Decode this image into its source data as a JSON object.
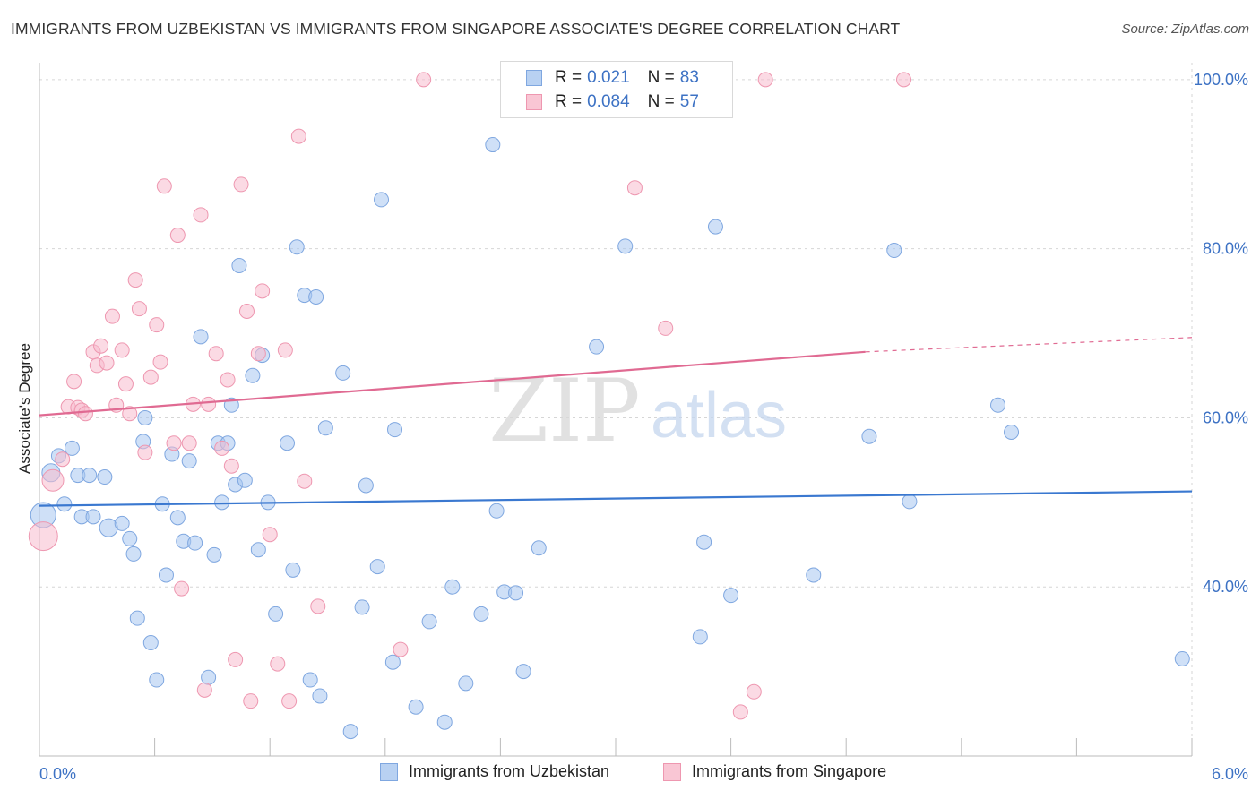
{
  "title": "IMMIGRANTS FROM UZBEKISTAN VS IMMIGRANTS FROM SINGAPORE ASSOCIATE'S DEGREE CORRELATION CHART",
  "source": "Source: ZipAtlas.com",
  "watermark": {
    "zip": "ZIP",
    "atlas": "atlas"
  },
  "legend": {
    "r_label": "R =",
    "n_label": "N =",
    "rows": [
      {
        "r": "0.021",
        "n": "83",
        "fill": "#b8d1f2",
        "stroke": "#7fa7e0"
      },
      {
        "r": "0.084",
        "n": "57",
        "fill": "#f9c6d4",
        "stroke": "#ee97b0"
      }
    ]
  },
  "bottom_legend": [
    "Immigrants from Uzbekistan",
    "Immigrants from Singapore"
  ],
  "chart_data": {
    "type": "scatter",
    "xlabel": "",
    "ylabel": "Associate's Degree",
    "xlim": [
      0.0,
      6.0
    ],
    "ylim": [
      20.0,
      102.0
    ],
    "x_tick_labels": [
      {
        "value": 0.0,
        "label": "0.0%"
      },
      {
        "value": 6.0,
        "label": "6.0%"
      }
    ],
    "y_tick_labels": [
      {
        "value": 40.0,
        "label": "40.0%"
      },
      {
        "value": 60.0,
        "label": "60.0%"
      },
      {
        "value": 80.0,
        "label": "80.0%"
      },
      {
        "value": 100.0,
        "label": "100.0%"
      }
    ],
    "grid": true,
    "colors": {
      "uzbekistan": "#3a78d0",
      "singapore": "#e06a92",
      "axis_text": "#3d72c4"
    },
    "series": [
      {
        "name": "Immigrants from Uzbekistan",
        "fill": "rgba(168,199,240,0.55)",
        "stroke": "#7fa7e0",
        "trend": {
          "x": [
            0.0,
            6.0
          ],
          "y": [
            49.6,
            51.3
          ],
          "color": "#3a78d0"
        },
        "points": [
          [
            0.02,
            48.5,
            14
          ],
          [
            0.06,
            53.5,
            10
          ],
          [
            0.1,
            55.5,
            8
          ],
          [
            0.13,
            49.8,
            8
          ],
          [
            0.17,
            56.4,
            8
          ],
          [
            0.2,
            53.2,
            8
          ],
          [
            0.22,
            48.3,
            8
          ],
          [
            0.26,
            53.2,
            8
          ],
          [
            0.28,
            48.3,
            8
          ],
          [
            0.34,
            53.0,
            8
          ],
          [
            0.36,
            47.0,
            10
          ],
          [
            0.43,
            47.5,
            8
          ],
          [
            0.47,
            45.7,
            8
          ],
          [
            0.49,
            43.9,
            8
          ],
          [
            0.51,
            36.3,
            8
          ],
          [
            0.54,
            57.2,
            8
          ],
          [
            0.55,
            60.0,
            8
          ],
          [
            0.58,
            33.4,
            8
          ],
          [
            0.61,
            29.0,
            8
          ],
          [
            0.64,
            49.8,
            8
          ],
          [
            0.66,
            41.4,
            8
          ],
          [
            0.69,
            55.7,
            8
          ],
          [
            0.72,
            48.2,
            8
          ],
          [
            0.75,
            45.4,
            8
          ],
          [
            0.78,
            54.9,
            8
          ],
          [
            0.81,
            45.2,
            8
          ],
          [
            0.84,
            69.6,
            8
          ],
          [
            0.88,
            29.3,
            8
          ],
          [
            0.91,
            43.8,
            8
          ],
          [
            0.93,
            57.0,
            8
          ],
          [
            0.95,
            50.0,
            8
          ],
          [
            0.98,
            57.0,
            8
          ],
          [
            1.0,
            61.5,
            8
          ],
          [
            1.02,
            52.1,
            8
          ],
          [
            1.04,
            78.0,
            8
          ],
          [
            1.07,
            52.6,
            8
          ],
          [
            1.11,
            65.0,
            8
          ],
          [
            1.14,
            44.4,
            8
          ],
          [
            1.16,
            67.4,
            8
          ],
          [
            1.19,
            50.0,
            8
          ],
          [
            1.23,
            36.8,
            8
          ],
          [
            1.29,
            57.0,
            8
          ],
          [
            1.32,
            42.0,
            8
          ],
          [
            1.34,
            80.2,
            8
          ],
          [
            1.38,
            74.5,
            8
          ],
          [
            1.41,
            29.0,
            8
          ],
          [
            1.44,
            74.3,
            8
          ],
          [
            1.46,
            27.1,
            8
          ],
          [
            1.49,
            58.8,
            8
          ],
          [
            1.58,
            65.3,
            8
          ],
          [
            1.62,
            22.9,
            8
          ],
          [
            1.68,
            37.6,
            8
          ],
          [
            1.7,
            52.0,
            8
          ],
          [
            1.76,
            42.4,
            8
          ],
          [
            1.78,
            85.8,
            8
          ],
          [
            1.84,
            31.1,
            8
          ],
          [
            1.85,
            58.6,
            8
          ],
          [
            1.96,
            25.8,
            8
          ],
          [
            2.03,
            35.9,
            8
          ],
          [
            2.11,
            24.0,
            8
          ],
          [
            2.15,
            40.0,
            8
          ],
          [
            2.22,
            28.6,
            8
          ],
          [
            2.3,
            36.8,
            8
          ],
          [
            2.36,
            92.3,
            8
          ],
          [
            2.38,
            49.0,
            8
          ],
          [
            2.42,
            39.4,
            8
          ],
          [
            2.48,
            39.3,
            8
          ],
          [
            2.52,
            30.0,
            8
          ],
          [
            2.6,
            44.6,
            8
          ],
          [
            2.9,
            68.4,
            8
          ],
          [
            3.05,
            80.3,
            8
          ],
          [
            3.44,
            34.1,
            8
          ],
          [
            3.46,
            45.3,
            8
          ],
          [
            3.52,
            82.6,
            8
          ],
          [
            3.6,
            39.0,
            8
          ],
          [
            4.03,
            41.4,
            8
          ],
          [
            4.32,
            57.8,
            8
          ],
          [
            4.45,
            79.8,
            8
          ],
          [
            4.53,
            50.1,
            8
          ],
          [
            4.99,
            61.5,
            8
          ],
          [
            5.06,
            58.3,
            8
          ],
          [
            5.95,
            31.5,
            8
          ]
        ]
      },
      {
        "name": "Immigrants from Singapore",
        "fill": "rgba(247,187,205,0.55)",
        "stroke": "#ee97b0",
        "trend": {
          "x": [
            0.0,
            4.3
          ],
          "y": [
            60.3,
            67.8
          ],
          "dash_x": [
            4.3,
            6.0
          ],
          "dash_y": [
            67.8,
            69.5
          ],
          "color": "#e06a92"
        },
        "points": [
          [
            0.02,
            46.0,
            16
          ],
          [
            0.07,
            52.6,
            12
          ],
          [
            0.12,
            55.1,
            8
          ],
          [
            0.15,
            61.3,
            8
          ],
          [
            0.18,
            64.3,
            8
          ],
          [
            0.2,
            61.2,
            8
          ],
          [
            0.22,
            60.9,
            8
          ],
          [
            0.24,
            60.5,
            8
          ],
          [
            0.28,
            67.8,
            8
          ],
          [
            0.3,
            66.2,
            8
          ],
          [
            0.32,
            68.5,
            8
          ],
          [
            0.35,
            66.5,
            8
          ],
          [
            0.38,
            72.0,
            8
          ],
          [
            0.4,
            61.5,
            8
          ],
          [
            0.43,
            68.0,
            8
          ],
          [
            0.45,
            64.0,
            8
          ],
          [
            0.47,
            60.5,
            8
          ],
          [
            0.5,
            76.3,
            8
          ],
          [
            0.52,
            72.9,
            8
          ],
          [
            0.55,
            55.9,
            8
          ],
          [
            0.58,
            64.8,
            8
          ],
          [
            0.61,
            71.0,
            8
          ],
          [
            0.63,
            66.6,
            8
          ],
          [
            0.65,
            87.4,
            8
          ],
          [
            0.7,
            57.0,
            8
          ],
          [
            0.72,
            81.6,
            8
          ],
          [
            0.74,
            39.8,
            8
          ],
          [
            0.78,
            57.0,
            8
          ],
          [
            0.8,
            61.6,
            8
          ],
          [
            0.84,
            84.0,
            8
          ],
          [
            0.86,
            27.8,
            8
          ],
          [
            0.88,
            61.6,
            8
          ],
          [
            0.92,
            67.6,
            8
          ],
          [
            0.95,
            56.4,
            8
          ],
          [
            0.98,
            64.5,
            8
          ],
          [
            1.0,
            54.3,
            8
          ],
          [
            1.02,
            31.4,
            8
          ],
          [
            1.05,
            87.6,
            8
          ],
          [
            1.08,
            72.6,
            8
          ],
          [
            1.1,
            26.5,
            8
          ],
          [
            1.14,
            67.6,
            8
          ],
          [
            1.16,
            75.0,
            8
          ],
          [
            1.2,
            46.2,
            8
          ],
          [
            1.24,
            30.9,
            8
          ],
          [
            1.28,
            68.0,
            8
          ],
          [
            1.3,
            26.5,
            8
          ],
          [
            1.35,
            93.3,
            8
          ],
          [
            1.38,
            52.5,
            8
          ],
          [
            1.45,
            37.7,
            8
          ],
          [
            1.88,
            32.6,
            8
          ],
          [
            2.0,
            100.0,
            8
          ],
          [
            3.1,
            87.2,
            8
          ],
          [
            3.26,
            70.6,
            8
          ],
          [
            3.65,
            25.2,
            8
          ],
          [
            3.72,
            27.6,
            8
          ],
          [
            3.78,
            100.0,
            8
          ],
          [
            4.5,
            100.0,
            8
          ]
        ]
      }
    ]
  }
}
